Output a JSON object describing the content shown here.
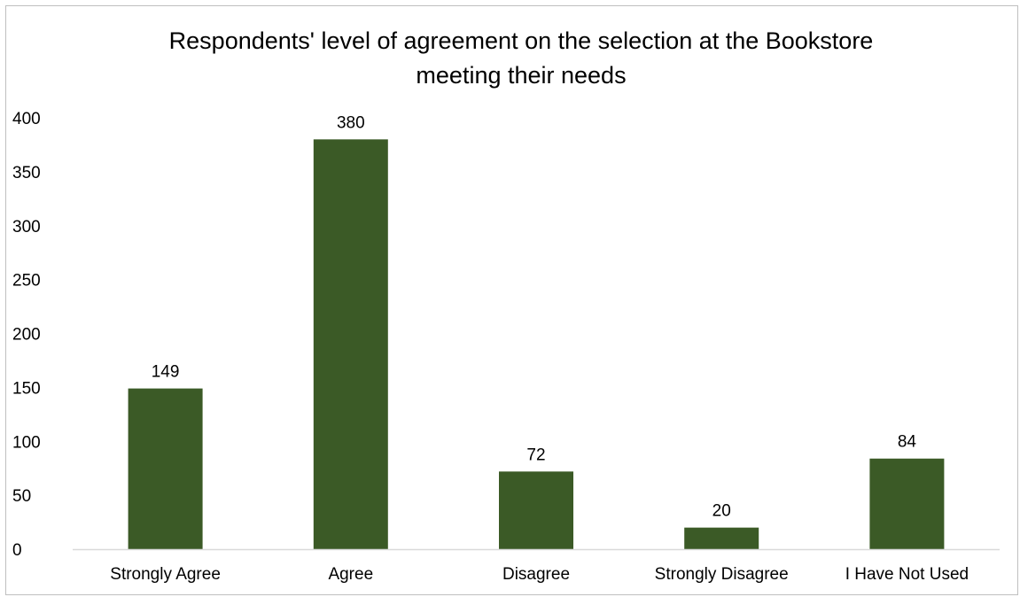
{
  "chart_data": {
    "type": "bar",
    "title_lines": [
      "Respondents' level of agreement on the selection at the Bookstore",
      "meeting their needs"
    ],
    "categories": [
      "Strongly Agree",
      "Agree",
      "Disagree",
      "Strongly Disagree",
      "I Have Not Used"
    ],
    "values": [
      149,
      380,
      72,
      20,
      84
    ],
    "data_labels": [
      "149",
      "380",
      "72",
      "20",
      "84"
    ],
    "ylim": [
      0,
      400
    ],
    "yticks": [
      0,
      50,
      100,
      150,
      200,
      250,
      300,
      350,
      400
    ],
    "ytick_labels": [
      "0",
      "50",
      "100",
      "150",
      "200",
      "250",
      "300",
      "350",
      "400"
    ],
    "xlabel": "",
    "ylabel": "",
    "grid": false,
    "legend": "none",
    "bar_color": "#3b5a26",
    "axis_color": "#d9d9d9"
  }
}
